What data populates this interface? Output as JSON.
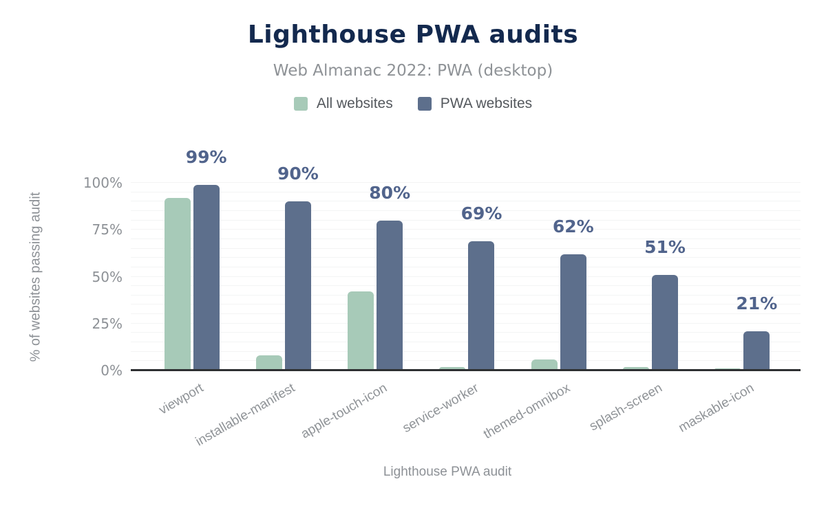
{
  "header": {
    "title": "Lighthouse PWA audits",
    "subtitle": "Web Almanac 2022: PWA (desktop)"
  },
  "legend": {
    "items": [
      {
        "label": "All websites",
        "color": "#a7cab8"
      },
      {
        "label": "PWA websites",
        "color": "#5d6f8c"
      }
    ]
  },
  "chart_data": {
    "type": "bar",
    "title": "Lighthouse PWA audits",
    "subtitle": "Web Almanac 2022: PWA (desktop)",
    "xlabel": "Lighthouse PWA audit",
    "ylabel": "% of websites passing audit",
    "categories": [
      "viewport",
      "installable-manifest",
      "apple-touch-icon",
      "service-worker",
      "themed-omnibox",
      "splash-screen",
      "maskable-icon"
    ],
    "series": [
      {
        "name": "All websites",
        "color": "#a7cab8",
        "values": [
          92,
          8,
          42,
          2,
          6,
          2,
          1
        ]
      },
      {
        "name": "PWA websites",
        "color": "#5d6f8c",
        "values": [
          99,
          90,
          80,
          69,
          62,
          51,
          21
        ],
        "data_labels": [
          "99%",
          "90%",
          "80%",
          "69%",
          "62%",
          "51%",
          "21%"
        ]
      }
    ],
    "ylim": [
      0,
      100
    ],
    "yticks": [
      {
        "value": 0,
        "label": "0%"
      },
      {
        "value": 25,
        "label": "25%"
      },
      {
        "value": 50,
        "label": "50%"
      },
      {
        "value": 75,
        "label": "75%"
      },
      {
        "value": 100,
        "label": "100%"
      }
    ],
    "grid": {
      "horizontal": true,
      "step_pct": 5
    },
    "legend_position": "top"
  },
  "colors": {
    "title": "#13294e",
    "subtitle": "#8e9296",
    "axis_text": "#8d9196",
    "category_text": "#8f9397",
    "data_label": "#51648c",
    "series_green": "#a7cab8",
    "series_slate": "#5d6f8c",
    "baseline": "#2d2f31",
    "gridline": "#f3f4f4",
    "background": "#ffffff"
  }
}
